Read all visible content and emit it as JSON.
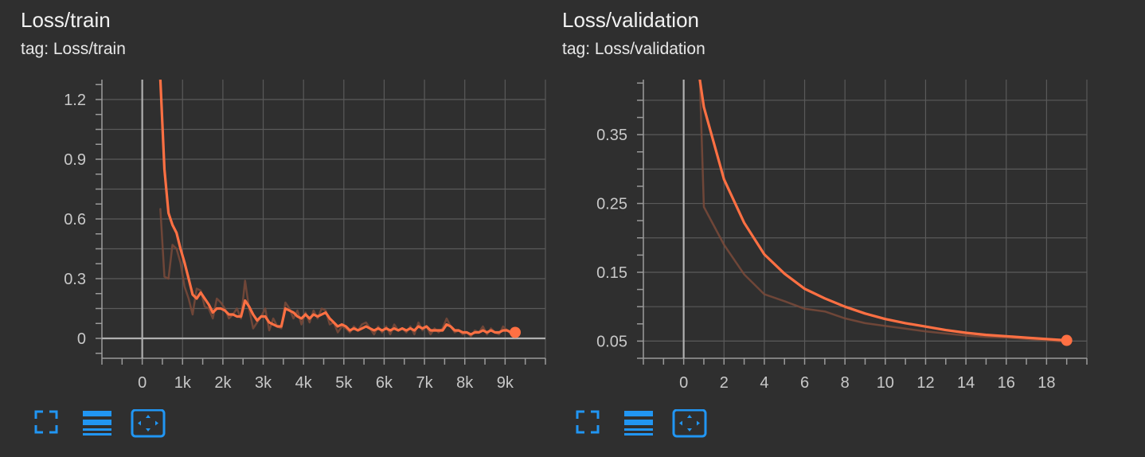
{
  "colors": {
    "background": "#2f2f2f",
    "grid": "#5a5a5a",
    "axis": "#9a9a9a",
    "line": "#ff7043",
    "line_raw": "#7a4a3a",
    "icon": "#2196f3",
    "text": "#f2f2f2",
    "tick": "#c8c8c8"
  },
  "icons": [
    "fullscreen-icon",
    "lines-icon",
    "fit-domain-icon"
  ],
  "chart_data": [
    {
      "type": "line",
      "title": "Loss/train",
      "subtitle": "tag: Loss/train",
      "xlim": [
        -1000,
        10000
      ],
      "ylim": [
        -0.1,
        1.3
      ],
      "xticks": [
        0,
        1000,
        2000,
        3000,
        4000,
        5000,
        6000,
        7000,
        8000,
        9000
      ],
      "xtick_labels": [
        "0",
        "1k",
        "2k",
        "3k",
        "4k",
        "5k",
        "6k",
        "7k",
        "8k",
        "9k"
      ],
      "yticks": [
        0,
        0.3,
        0.6,
        0.9,
        1.2
      ],
      "ytick_labels": [
        "0",
        "0.3",
        "0.6",
        "0.9",
        "1.2"
      ],
      "grid": true,
      "series": [
        {
          "role": "raw",
          "x": [
            450,
            550,
            650,
            750,
            850,
            950,
            1050,
            1150,
            1250,
            1350,
            1450,
            1550,
            1650,
            1750,
            1850,
            1950,
            2050,
            2150,
            2250,
            2350,
            2450,
            2550,
            2650,
            2750,
            2850,
            2950,
            3050,
            3150,
            3250,
            3350,
            3450,
            3550,
            3650,
            3750,
            3850,
            3950,
            4050,
            4150,
            4250,
            4350,
            4450,
            4550,
            4650,
            4750,
            4850,
            4950,
            5050,
            5150,
            5250,
            5350,
            5450,
            5550,
            5650,
            5750,
            5850,
            5950,
            6050,
            6150,
            6250,
            6350,
            6450,
            6550,
            6650,
            6750,
            6850,
            6950,
            7050,
            7150,
            7250,
            7350,
            7450,
            7550,
            7650,
            7750,
            7850,
            7950,
            8050,
            8150,
            8250,
            8350,
            8450,
            8550,
            8650,
            8750,
            8850,
            8950,
            9050,
            9150,
            9250
          ],
          "y": [
            0.65,
            0.31,
            0.3,
            0.47,
            0.45,
            0.38,
            0.26,
            0.2,
            0.12,
            0.25,
            0.24,
            0.16,
            0.15,
            0.1,
            0.2,
            0.18,
            0.15,
            0.1,
            0.12,
            0.15,
            0.1,
            0.29,
            0.15,
            0.05,
            0.08,
            0.11,
            0.15,
            0.04,
            0.1,
            0.06,
            0.05,
            0.18,
            0.15,
            0.1,
            0.14,
            0.07,
            0.13,
            0.08,
            0.14,
            0.1,
            0.15,
            0.14,
            0.07,
            0.08,
            0.03,
            0.06,
            0.05,
            0.03,
            0.06,
            0.04,
            0.07,
            0.08,
            0.05,
            0.02,
            0.06,
            0.03,
            0.06,
            0.02,
            0.07,
            0.04,
            0.05,
            0.03,
            0.06,
            0.02,
            0.08,
            0.04,
            0.06,
            0.02,
            0.05,
            0.03,
            0.05,
            0.1,
            0.06,
            0.03,
            0.04,
            0.02,
            0.03,
            0.01,
            0.04,
            0.03,
            0.06,
            0.02,
            0.05,
            0.03,
            0.02,
            0.06,
            0.04,
            0.02,
            0.03
          ]
        },
        {
          "role": "smoothed",
          "x": [
            450,
            550,
            650,
            750,
            850,
            950,
            1050,
            1150,
            1250,
            1350,
            1450,
            1550,
            1650,
            1750,
            1850,
            1950,
            2050,
            2150,
            2250,
            2350,
            2450,
            2550,
            2650,
            2750,
            2850,
            2950,
            3050,
            3150,
            3250,
            3350,
            3450,
            3550,
            3650,
            3750,
            3850,
            3950,
            4050,
            4150,
            4250,
            4350,
            4450,
            4550,
            4650,
            4750,
            4850,
            4950,
            5050,
            5150,
            5250,
            5350,
            5450,
            5550,
            5650,
            5750,
            5850,
            5950,
            6050,
            6150,
            6250,
            6350,
            6450,
            6550,
            6650,
            6750,
            6850,
            6950,
            7050,
            7150,
            7250,
            7350,
            7450,
            7550,
            7650,
            7750,
            7850,
            7950,
            8050,
            8150,
            8250,
            8350,
            8450,
            8550,
            8650,
            8750,
            8850,
            8950,
            9050,
            9150,
            9250
          ],
          "y": [
            1.3,
            0.85,
            0.63,
            0.57,
            0.53,
            0.45,
            0.38,
            0.3,
            0.22,
            0.2,
            0.23,
            0.2,
            0.17,
            0.13,
            0.15,
            0.15,
            0.14,
            0.12,
            0.12,
            0.11,
            0.11,
            0.19,
            0.16,
            0.12,
            0.09,
            0.11,
            0.11,
            0.08,
            0.07,
            0.06,
            0.06,
            0.15,
            0.14,
            0.13,
            0.11,
            0.1,
            0.12,
            0.1,
            0.12,
            0.11,
            0.12,
            0.13,
            0.1,
            0.08,
            0.06,
            0.07,
            0.06,
            0.04,
            0.05,
            0.04,
            0.05,
            0.06,
            0.05,
            0.04,
            0.05,
            0.04,
            0.05,
            0.04,
            0.05,
            0.04,
            0.05,
            0.04,
            0.05,
            0.04,
            0.06,
            0.05,
            0.06,
            0.04,
            0.04,
            0.04,
            0.04,
            0.07,
            0.06,
            0.04,
            0.04,
            0.03,
            0.03,
            0.02,
            0.03,
            0.03,
            0.04,
            0.03,
            0.04,
            0.03,
            0.03,
            0.04,
            0.04,
            0.03,
            0.03
          ]
        }
      ]
    },
    {
      "type": "line",
      "title": "Loss/validation",
      "subtitle": "tag: Loss/validation",
      "xlim": [
        -2,
        20
      ],
      "ylim": [
        0.025,
        0.43
      ],
      "xticks": [
        0,
        2,
        4,
        6,
        8,
        10,
        12,
        14,
        16,
        18
      ],
      "xtick_labels": [
        "0",
        "2",
        "4",
        "6",
        "8",
        "10",
        "12",
        "14",
        "16",
        "18"
      ],
      "yticks": [
        0.05,
        0.15,
        0.25,
        0.35
      ],
      "ytick_labels": [
        "0.05",
        "0.15",
        "0.25",
        "0.35"
      ],
      "grid": true,
      "series": [
        {
          "role": "raw",
          "x": [
            0.8,
            1,
            2,
            3,
            4,
            5,
            6,
            7,
            8,
            9,
            10,
            11,
            12,
            13,
            14,
            15,
            16,
            17,
            18,
            19
          ],
          "y": [
            0.43,
            0.245,
            0.19,
            0.147,
            0.118,
            0.108,
            0.097,
            0.093,
            0.083,
            0.076,
            0.072,
            0.068,
            0.064,
            0.061,
            0.058,
            0.056,
            0.055,
            0.053,
            0.051,
            0.049
          ]
        },
        {
          "role": "smoothed",
          "x": [
            0.8,
            1,
            2,
            3,
            4,
            5,
            6,
            7,
            8,
            9,
            10,
            11,
            12,
            13,
            14,
            15,
            16,
            17,
            18,
            19
          ],
          "y": [
            0.43,
            0.39,
            0.285,
            0.222,
            0.176,
            0.148,
            0.126,
            0.112,
            0.1,
            0.09,
            0.082,
            0.076,
            0.071,
            0.066,
            0.062,
            0.059,
            0.057,
            0.055,
            0.053,
            0.051
          ]
        }
      ]
    }
  ]
}
